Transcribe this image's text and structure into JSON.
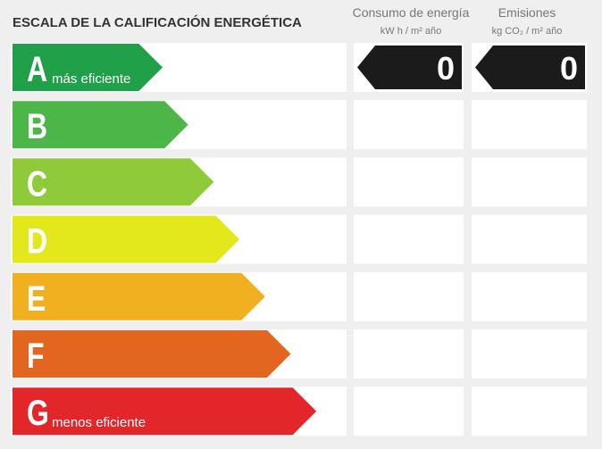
{
  "title": "ESCALA DE LA CALIFICACIÓN ENERGÉTICA",
  "columns": [
    {
      "header": "Consumo de energía",
      "unit": "kW h / m² año"
    },
    {
      "header": "Emisiones",
      "unit": "kg CO₂ / m² año"
    }
  ],
  "rows": [
    {
      "letter": "A",
      "label": "más eficiente",
      "color": "#21a04a",
      "values": [
        0,
        0
      ]
    },
    {
      "letter": "B",
      "color": "#4cb748"
    },
    {
      "letter": "C",
      "color": "#8fca3a"
    },
    {
      "letter": "D",
      "color": "#e3e81c"
    },
    {
      "letter": "E",
      "color": "#f0b01f"
    },
    {
      "letter": "F",
      "color": "#e2661f"
    },
    {
      "letter": "G",
      "label": "menos eficiente",
      "color": "#e2262a"
    }
  ]
}
